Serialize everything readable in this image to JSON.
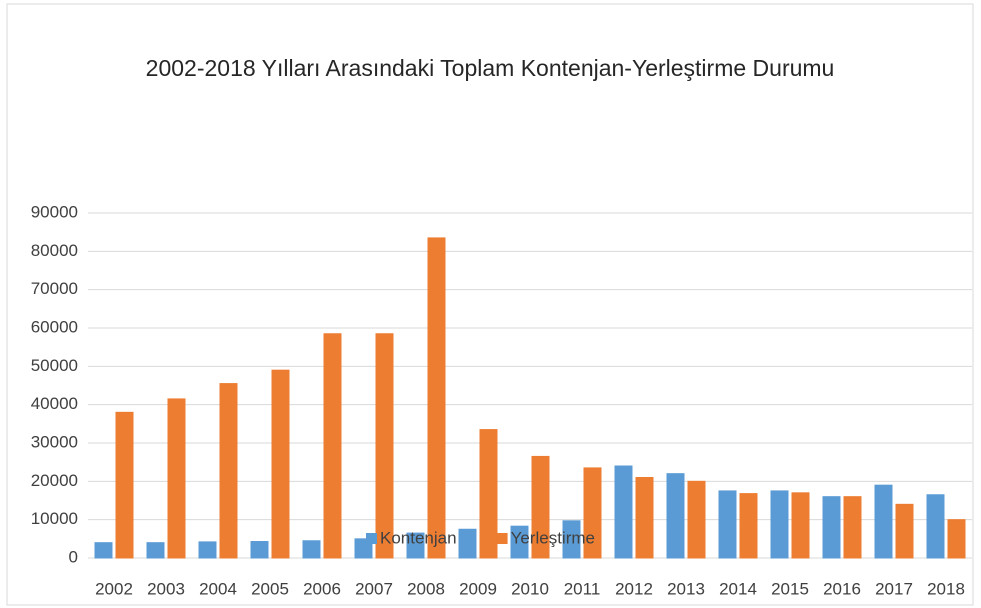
{
  "chart_data": {
    "type": "bar",
    "title": "2002-2018 Yılları Arasındaki Toplam Kontenjan-Yerleştirme Durumu",
    "categories": [
      "2002",
      "2003",
      "2004",
      "2005",
      "2006",
      "2007",
      "2008",
      "2009",
      "2010",
      "2011",
      "2012",
      "2013",
      "2014",
      "2015",
      "2016",
      "2017",
      "2018"
    ],
    "series": [
      {
        "name": "Kontenjan",
        "color": "#5b9bd5",
        "values": [
          4000,
          4000,
          4200,
          4300,
          4500,
          5000,
          6500,
          7500,
          8300,
          9700,
          24000,
          22000,
          17500,
          17500,
          16000,
          19000,
          16500
        ]
      },
      {
        "name": "Yerleştirme",
        "color": "#ed7d31",
        "values": [
          38000,
          41500,
          45500,
          49000,
          58500,
          58500,
          83500,
          33500,
          26500,
          23500,
          21000,
          20000,
          16800,
          17000,
          16000,
          14000,
          10000
        ]
      }
    ],
    "ylim": [
      0,
      90000
    ],
    "yticks": [
      0,
      10000,
      20000,
      30000,
      40000,
      50000,
      60000,
      70000,
      80000,
      90000
    ],
    "grid": true,
    "legend": "bottom"
  }
}
